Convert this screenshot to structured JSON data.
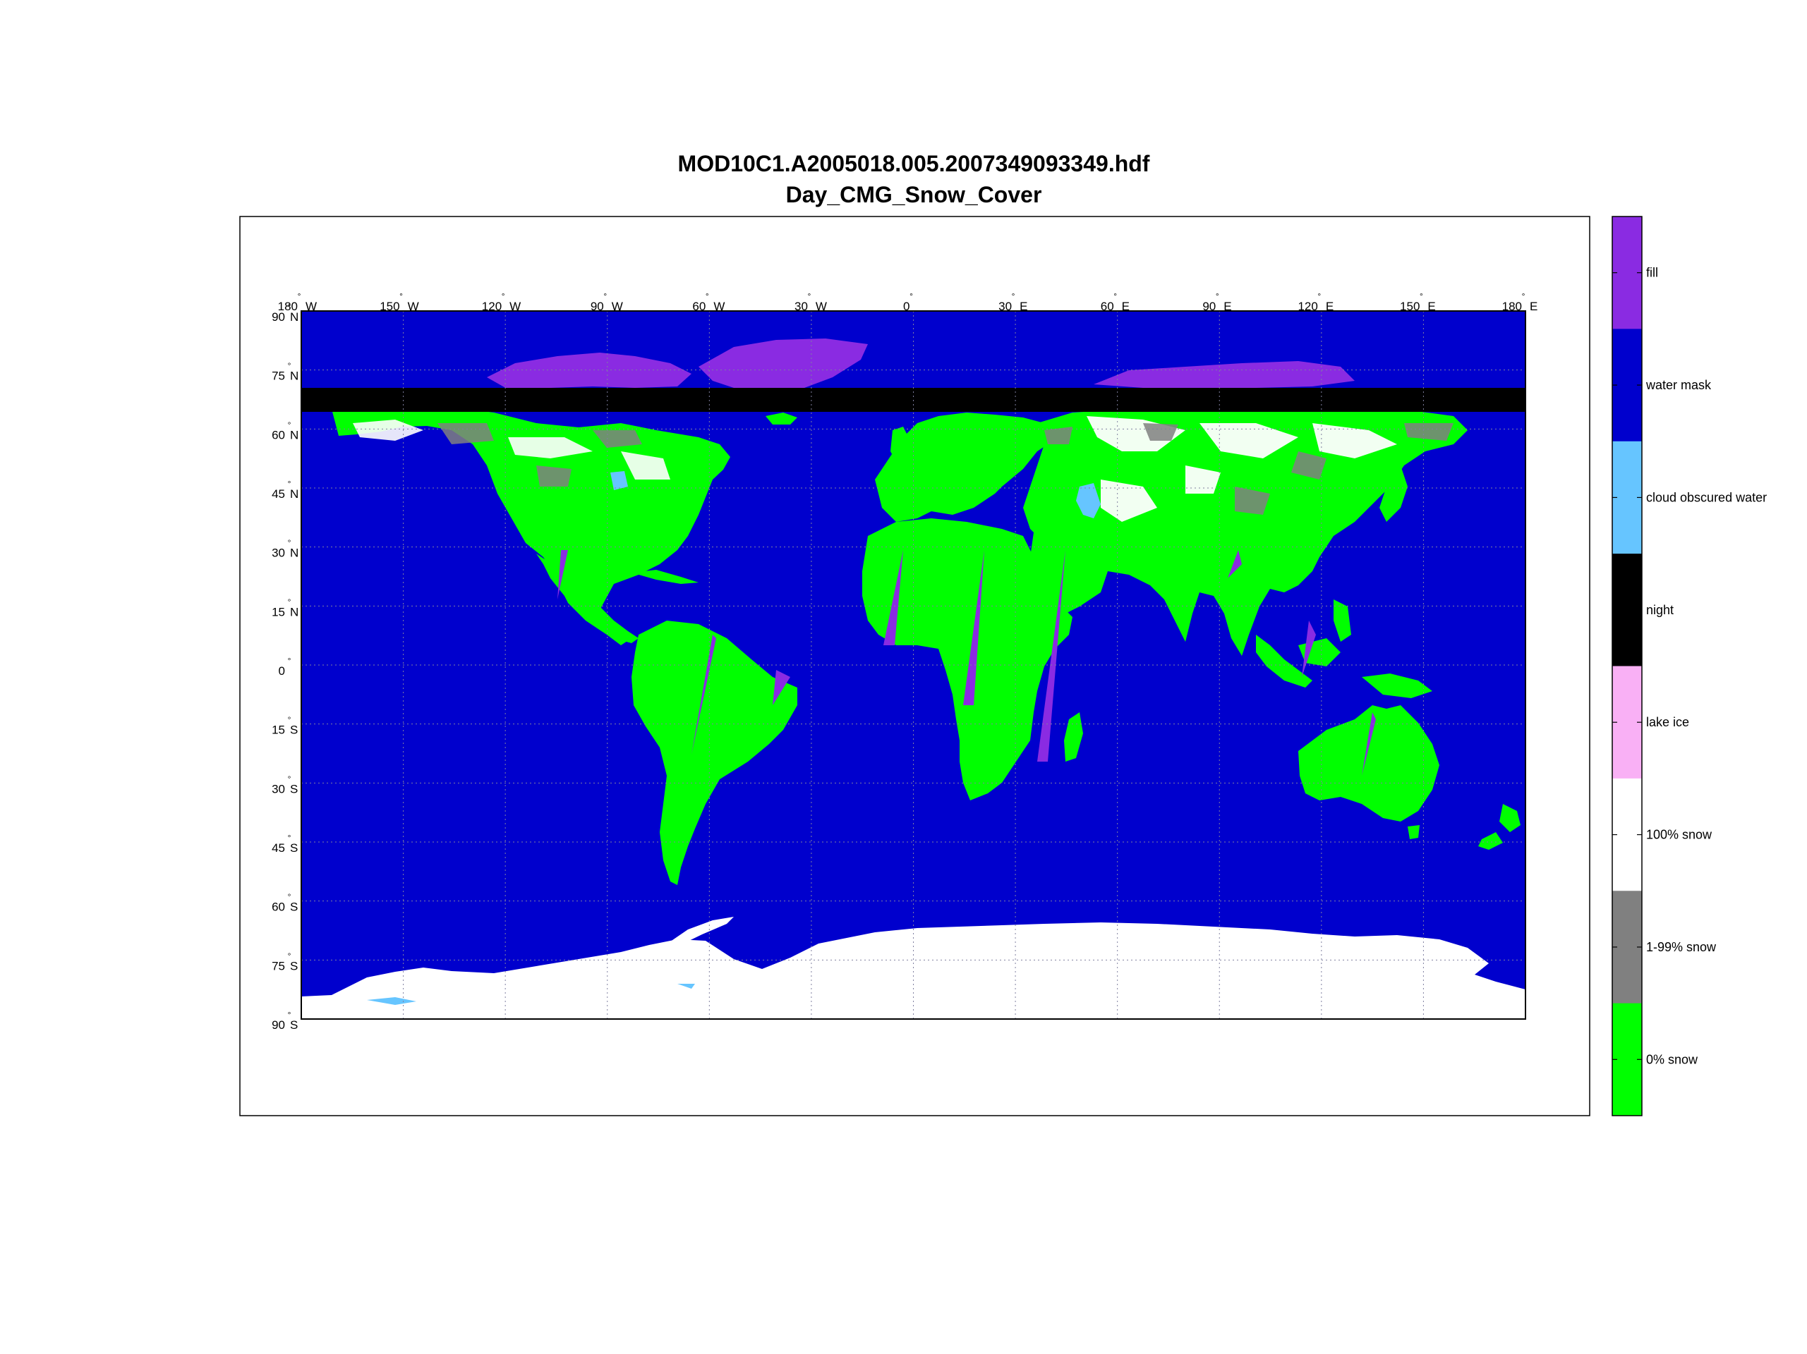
{
  "title": {
    "line1": "MOD10C1.A2005018.005.2007349093349.hdf",
    "line2": "Day_CMG_Snow_Cover"
  },
  "map": {
    "projection": "equirectangular",
    "lon_range": [
      -180,
      180
    ],
    "lat_range": [
      -90,
      90
    ],
    "grid": "dotted",
    "background_class": "water mask",
    "lon_ticks": [
      {
        "value": "180",
        "hemi": "W"
      },
      {
        "value": "150",
        "hemi": "W"
      },
      {
        "value": "120",
        "hemi": "W"
      },
      {
        "value": "90",
        "hemi": "W"
      },
      {
        "value": "60",
        "hemi": "W"
      },
      {
        "value": "30",
        "hemi": "W"
      },
      {
        "value": "0",
        "hemi": ""
      },
      {
        "value": "30",
        "hemi": "E"
      },
      {
        "value": "60",
        "hemi": "E"
      },
      {
        "value": "90",
        "hemi": "E"
      },
      {
        "value": "120",
        "hemi": "E"
      },
      {
        "value": "150",
        "hemi": "E"
      },
      {
        "value": "180",
        "hemi": "E"
      }
    ],
    "lat_ticks": [
      {
        "value": "90",
        "hemi": "N"
      },
      {
        "value": "75",
        "hemi": "N"
      },
      {
        "value": "60",
        "hemi": "N"
      },
      {
        "value": "45",
        "hemi": "N"
      },
      {
        "value": "30",
        "hemi": "N"
      },
      {
        "value": "15",
        "hemi": "N"
      },
      {
        "value": "0",
        "hemi": ""
      },
      {
        "value": "15",
        "hemi": "S"
      },
      {
        "value": "30",
        "hemi": "S"
      },
      {
        "value": "45",
        "hemi": "S"
      },
      {
        "value": "60",
        "hemi": "S"
      },
      {
        "value": "75",
        "hemi": "S"
      },
      {
        "value": "90",
        "hemi": "S"
      }
    ],
    "degree_symbol": "°"
  },
  "colorbar": {
    "orientation": "vertical",
    "position": "right",
    "classes": [
      {
        "label": "fill",
        "color": "#8a2be2"
      },
      {
        "label": "water mask",
        "color": "#0000cd"
      },
      {
        "label": "cloud obscured water",
        "color": "#66c5ff"
      },
      {
        "label": "night",
        "color": "#000000"
      },
      {
        "label": "lake ice",
        "color": "#f9b0f5"
      },
      {
        "label": "100% snow",
        "color": "#ffffff"
      },
      {
        "label": "1-99% snow",
        "color": "#808080"
      },
      {
        "label": "0% snow",
        "color": "#00ff00"
      }
    ]
  }
}
